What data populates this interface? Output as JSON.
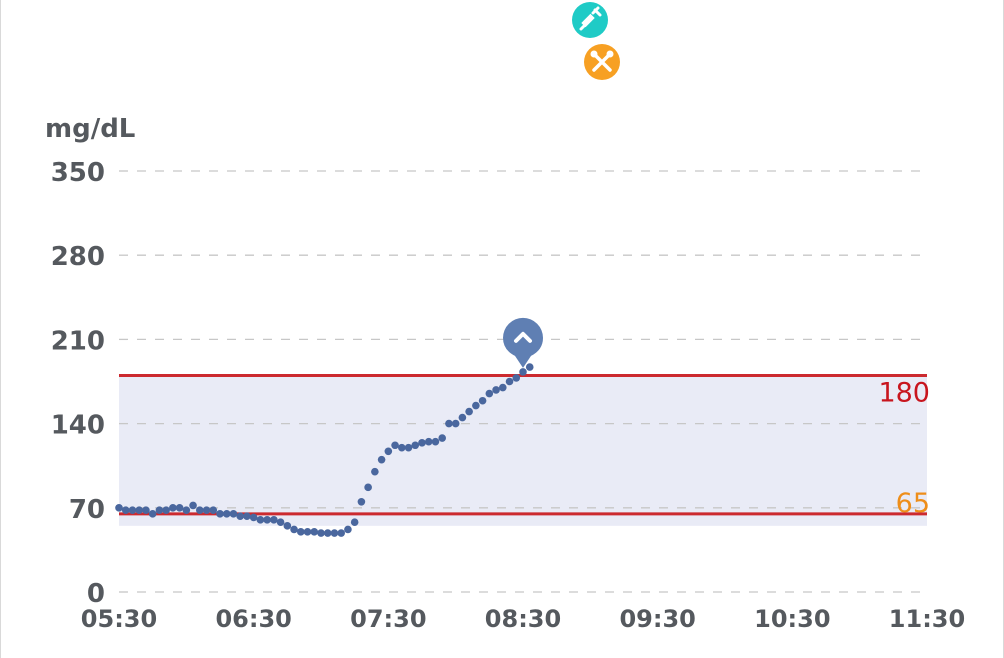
{
  "chart_data": {
    "type": "scatter",
    "ylabel": "mg/dL",
    "ylim": [
      0,
      350
    ],
    "yticks": [
      "350",
      "280",
      "210",
      "140",
      "70",
      "0"
    ],
    "xticks": [
      "05:30",
      "06:30",
      "07:30",
      "08:30",
      "09:30",
      "10:30",
      "11:30"
    ],
    "xlim_hours": [
      5.5,
      11.5
    ],
    "target_range": {
      "low": 65,
      "high": 180,
      "low_label": "65",
      "high_label": "180",
      "low_color": "#ee8e1a",
      "high_color": "#c8151e",
      "line_color": "#cc2a2f",
      "fill_color": "#e9ebf6"
    },
    "grid": true,
    "series": [
      {
        "point_color": "#4a679e",
        "points": [
          [
            5.5,
            70
          ],
          [
            5.55,
            68
          ],
          [
            5.6,
            68
          ],
          [
            5.65,
            68
          ],
          [
            5.7,
            68
          ],
          [
            5.75,
            65
          ],
          [
            5.8,
            68
          ],
          [
            5.85,
            68
          ],
          [
            5.9,
            70
          ],
          [
            5.95,
            70
          ],
          [
            6.0,
            68
          ],
          [
            6.05,
            72
          ],
          [
            6.1,
            68
          ],
          [
            6.15,
            68
          ],
          [
            6.2,
            68
          ],
          [
            6.25,
            65
          ],
          [
            6.3,
            65
          ],
          [
            6.35,
            65
          ],
          [
            6.4,
            63
          ],
          [
            6.45,
            63
          ],
          [
            6.5,
            62
          ],
          [
            6.55,
            60
          ],
          [
            6.6,
            60
          ],
          [
            6.65,
            60
          ],
          [
            6.7,
            58
          ],
          [
            6.75,
            55
          ],
          [
            6.8,
            52
          ],
          [
            6.85,
            50
          ],
          [
            6.9,
            50
          ],
          [
            6.95,
            50
          ],
          [
            7.0,
            49
          ],
          [
            7.05,
            49
          ],
          [
            7.1,
            49
          ],
          [
            7.15,
            49
          ],
          [
            7.2,
            52
          ],
          [
            7.25,
            58
          ],
          [
            7.3,
            75
          ],
          [
            7.35,
            87
          ],
          [
            7.4,
            100
          ],
          [
            7.45,
            110
          ],
          [
            7.5,
            117
          ],
          [
            7.55,
            122
          ],
          [
            7.6,
            120
          ],
          [
            7.65,
            120
          ],
          [
            7.7,
            122
          ],
          [
            7.75,
            124
          ],
          [
            7.8,
            125
          ],
          [
            7.85,
            125
          ],
          [
            7.9,
            128
          ],
          [
            7.95,
            140
          ],
          [
            8.0,
            140
          ],
          [
            8.05,
            145
          ],
          [
            8.1,
            150
          ],
          [
            8.15,
            155
          ],
          [
            8.2,
            159
          ],
          [
            8.25,
            165
          ],
          [
            8.3,
            168
          ],
          [
            8.35,
            170
          ],
          [
            8.4,
            175
          ],
          [
            8.45,
            178
          ],
          [
            8.5,
            183
          ],
          [
            8.55,
            187
          ]
        ]
      }
    ]
  },
  "events": [
    {
      "icon": "insulin-syringe-icon",
      "color": "#1fcbc6"
    },
    {
      "icon": "meal-fork-knife-icon",
      "color": "#f7a023"
    }
  ],
  "marker": {
    "icon": "chevron-up-icon",
    "color": "#5f7fb3"
  }
}
